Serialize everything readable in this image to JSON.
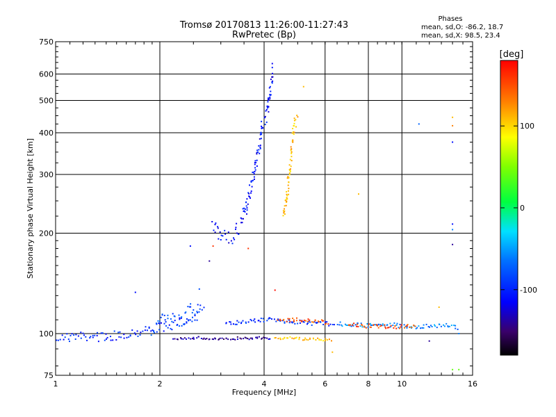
{
  "title_line1": "Tromsø 20170813 11:26:00-11:27:43",
  "title_line2": "RwPretec (Bp)",
  "stats": {
    "heading": "Phases",
    "o_line": "mean, sd,O: -86.2, 18.7",
    "x_line": "mean, sd,X:  98.5, 23.4"
  },
  "colorbar": {
    "unit_label": "[deg]",
    "ticks": [
      "100",
      "0",
      "-100"
    ],
    "tick_values": [
      100,
      0,
      -100
    ],
    "range": [
      -180,
      180
    ]
  },
  "chart_data": {
    "type": "scatter",
    "xlabel": "Frequency [MHz]",
    "ylabel": "Stationary phase Virtual Height [km]",
    "x_scale": "log",
    "y_scale": "log",
    "xlim": [
      1,
      16
    ],
    "ylim": [
      75,
      750
    ],
    "x_ticks": [
      1,
      2,
      4,
      6,
      8,
      10,
      16
    ],
    "x_tick_labels": [
      "1",
      "2",
      "4",
      "6",
      "8",
      "10",
      "16"
    ],
    "y_ticks": [
      75,
      100,
      200,
      300,
      400,
      500,
      600,
      750
    ],
    "y_tick_labels": [
      "75",
      "100",
      "200",
      "300",
      "400",
      "500",
      "600",
      "750"
    ],
    "grid": true,
    "traces": [
      {
        "x": [
          1.0,
          1.2,
          1.45,
          1.7,
          1.95,
          2.2,
          2.4,
          2.6
        ],
        "y": [
          97,
          98,
          98,
          101,
          104,
          106,
          110,
          114
        ],
        "phase": -100,
        "spread": 7
      },
      {
        "x": [
          1.9,
          2.1,
          2.3,
          2.5,
          2.7
        ],
        "y": [
          103,
          112,
          108,
          120,
          115
        ],
        "phase": -80,
        "spread": 10
      },
      {
        "x": [
          2.2,
          2.6,
          3.0,
          3.4,
          3.8,
          4.2
        ],
        "y": [
          97,
          97,
          96,
          97,
          97,
          97
        ],
        "phase": -140,
        "spread": 2
      },
      {
        "x": [
          3.1,
          3.6,
          4.1,
          4.6,
          5.2,
          5.8,
          6.4
        ],
        "y": [
          107,
          109,
          110,
          109,
          108,
          107,
          107
        ],
        "phase": -95,
        "spread": 3
      },
      {
        "x": [
          4.3,
          4.8,
          5.3,
          5.8,
          6.3
        ],
        "y": [
          97,
          97,
          96,
          96,
          96
        ],
        "phase": 110,
        "spread": 2
      },
      {
        "x": [
          4.4,
          5.0,
          5.6,
          6.2
        ],
        "y": [
          109,
          110,
          109,
          108
        ],
        "phase": 150,
        "spread": 3
      },
      {
        "x": [
          6.5,
          7.5,
          8.5,
          9.5,
          10.5,
          12.0,
          13.5,
          14.6
        ],
        "y": [
          107,
          106,
          106,
          106,
          105,
          105,
          106,
          104
        ],
        "phase": -60,
        "spread": 3
      },
      {
        "x": [
          7.0,
          8.5,
          10.0,
          11.0
        ],
        "y": [
          106,
          105,
          105,
          105
        ],
        "phase": 150,
        "spread": 3
      },
      {
        "x": [
          2.85,
          3.0,
          3.15,
          3.3,
          3.45,
          3.55,
          3.65,
          3.75,
          3.85,
          3.95,
          4.05,
          4.15,
          4.25
        ],
        "y": [
          210,
          195,
          193,
          200,
          215,
          240,
          270,
          310,
          360,
          410,
          450,
          520,
          620
        ],
        "phase": -110,
        "spread": 12
      },
      {
        "x": [
          4.55,
          4.65,
          4.75,
          4.82,
          4.9,
          5.0
        ],
        "y": [
          225,
          260,
          310,
          380,
          420,
          445
        ],
        "phase": 110,
        "spread": 9
      }
    ],
    "points": [
      {
        "x": 2.45,
        "y": 183,
        "phase": -110
      },
      {
        "x": 2.85,
        "y": 183,
        "phase": 160
      },
      {
        "x": 2.78,
        "y": 165,
        "phase": -140
      },
      {
        "x": 3.6,
        "y": 180,
        "phase": 160
      },
      {
        "x": 4.3,
        "y": 135,
        "phase": 175
      },
      {
        "x": 1.7,
        "y": 133,
        "phase": -110
      },
      {
        "x": 2.6,
        "y": 136,
        "phase": -80
      },
      {
        "x": 7.5,
        "y": 262,
        "phase": 110
      },
      {
        "x": 5.2,
        "y": 550,
        "phase": 110
      },
      {
        "x": 11.2,
        "y": 425,
        "phase": -70
      },
      {
        "x": 14.0,
        "y": 445,
        "phase": 110
      },
      {
        "x": 14.0,
        "y": 420,
        "phase": 130
      },
      {
        "x": 14.0,
        "y": 375,
        "phase": -110
      },
      {
        "x": 14.0,
        "y": 213,
        "phase": -110
      },
      {
        "x": 14.0,
        "y": 205,
        "phase": -60
      },
      {
        "x": 14.0,
        "y": 185,
        "phase": -140
      },
      {
        "x": 12.8,
        "y": 120,
        "phase": 110
      },
      {
        "x": 6.3,
        "y": 88,
        "phase": 110
      },
      {
        "x": 14.0,
        "y": 78,
        "phase": 40
      },
      {
        "x": 14.6,
        "y": 78,
        "phase": 40
      },
      {
        "x": 12.0,
        "y": 95,
        "phase": -140
      },
      {
        "x": 14.6,
        "y": 100,
        "phase": -60
      }
    ]
  }
}
